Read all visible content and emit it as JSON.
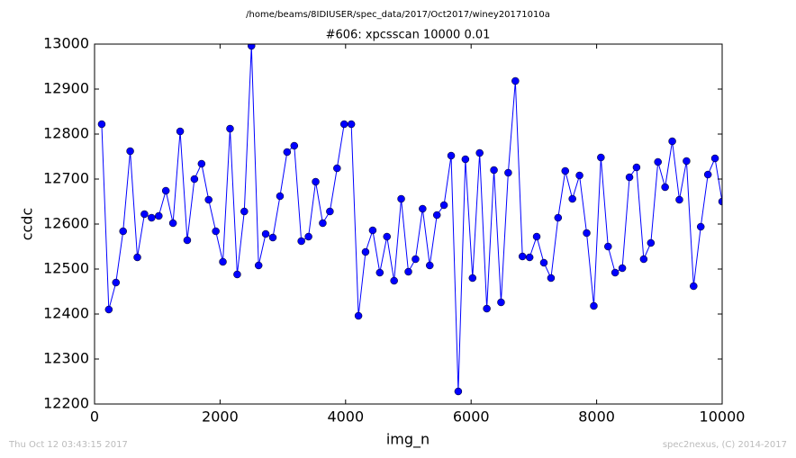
{
  "chart_data": {
    "type": "line",
    "suptitle": "/home/beams/8IDIUSER/spec_data/2017/Oct2017/winey20171010a",
    "title": "#606: xpcsscan 10000 0.01",
    "xlabel": "img_n",
    "ylabel": "ccdc",
    "footer_left": "Thu Oct 12 03:43:15 2017",
    "footer_right": "spec2nexus, (C) 2014-2017",
    "x": [
      114,
      227,
      341,
      455,
      568,
      682,
      795,
      909,
      1023,
      1136,
      1250,
      1364,
      1477,
      1591,
      1705,
      1818,
      1932,
      2045,
      2159,
      2273,
      2386,
      2500,
      2614,
      2727,
      2841,
      2955,
      3068,
      3182,
      3295,
      3409,
      3523,
      3636,
      3750,
      3864,
      3977,
      4091,
      4205,
      4318,
      4432,
      4545,
      4659,
      4773,
      4886,
      5000,
      5114,
      5227,
      5341,
      5455,
      5568,
      5682,
      5795,
      5909,
      6023,
      6136,
      6250,
      6364,
      6477,
      6591,
      6705,
      6818,
      6932,
      7045,
      7159,
      7273,
      7386,
      7500,
      7614,
      7727,
      7841,
      7955,
      8068,
      8182,
      8295,
      8409,
      8523,
      8636,
      8750,
      8864,
      8977,
      9091,
      9205,
      9318,
      9432,
      9545,
      9659,
      9773,
      9886,
      10000
    ],
    "series": [
      {
        "color": "#0000ff",
        "values": [
          12822,
          12410,
          12470,
          12584,
          12762,
          12526,
          12622,
          12614,
          12618,
          12674,
          12602,
          12806,
          12564,
          12700,
          12734,
          12654,
          12584,
          12516,
          12812,
          12488,
          12628,
          12996,
          12508,
          12578,
          12570,
          12662,
          12760,
          12774,
          12562,
          12572,
          12694,
          12602,
          12628,
          12724,
          12822,
          12822,
          12396,
          12538,
          12586,
          12492,
          12572,
          12474,
          12656,
          12494,
          12522,
          12634,
          12508,
          12620,
          12642,
          12752,
          12228,
          12744,
          12480,
          12758,
          12412,
          12720,
          12426,
          12714,
          12918,
          12528,
          12526,
          12572,
          12514,
          12480,
          12614,
          12718,
          12656,
          12708,
          12580,
          12418,
          12748,
          12550,
          12492,
          12502,
          12704,
          12726,
          12522,
          12558,
          12738,
          12682,
          12784,
          12654,
          12740,
          12462,
          12594,
          12710,
          12746,
          12650
        ]
      }
    ],
    "xlim": [
      0,
      10000
    ],
    "xticks": [
      0,
      2000,
      4000,
      6000,
      8000,
      10000
    ],
    "ylim": [
      12200,
      13000
    ],
    "yticks": [
      12200,
      12300,
      12400,
      12500,
      12600,
      12700,
      12800,
      12900,
      13000
    ]
  }
}
